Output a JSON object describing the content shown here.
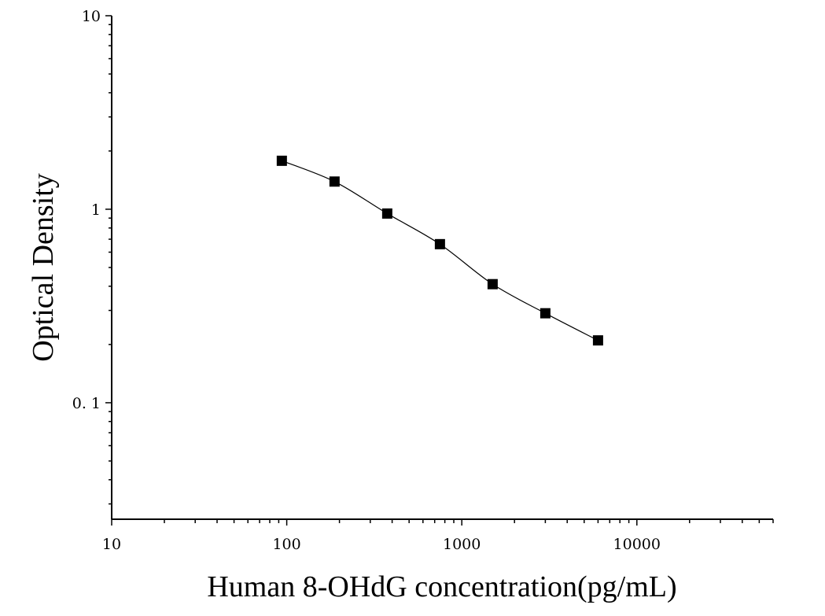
{
  "chart_data": {
    "type": "scatter",
    "title": "",
    "xlabel": "Human 8-OHdG concentration(pg/mL)",
    "ylabel": "Optical Density",
    "xscale": "log",
    "yscale": "log",
    "xlim": [
      10,
      60000
    ],
    "ylim": [
      0.025,
      10
    ],
    "x_tick_labels": [
      "10",
      "100",
      "1000",
      "10000"
    ],
    "y_tick_labels": [
      "10",
      "1",
      "0. 1"
    ],
    "grid": false,
    "legend": "none",
    "series": [
      {
        "x": [
          93.75,
          187.5,
          375,
          750,
          1500,
          3000,
          6000
        ],
        "y": [
          1.78,
          1.39,
          0.95,
          0.66,
          0.41,
          0.29,
          0.21
        ],
        "marker": "square",
        "color": "#000000",
        "fit": "smooth-curve"
      }
    ]
  }
}
